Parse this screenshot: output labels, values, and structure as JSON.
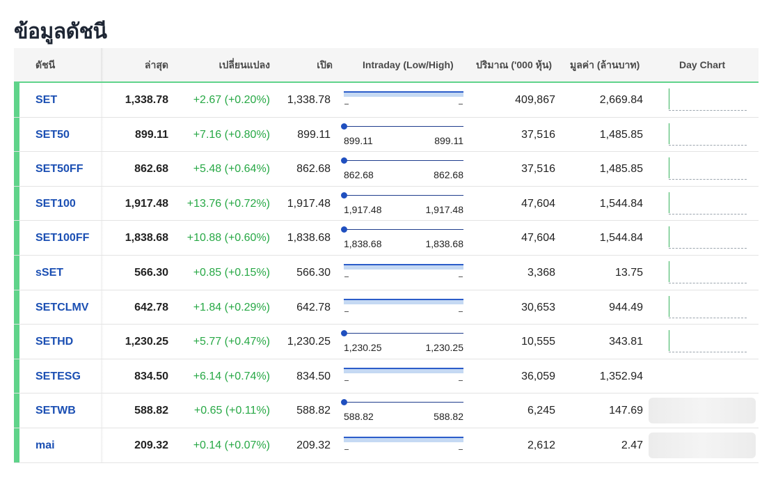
{
  "page_title": "ข้อมูลดัชนี",
  "columns": {
    "index": "ดัชนี",
    "last": "ล่าสุด",
    "change": "เปลี่ยนแปลง",
    "open": "เปิด",
    "intraday": "Intraday (Low/High)",
    "volume": "ปริมาณ ('000 หุ้น)",
    "value": "มูลค่า (ล้านบาท)",
    "day_chart": "Day Chart"
  },
  "colors": {
    "accent": "#5fd38a",
    "link": "#1b4fb3",
    "up": "#27a845",
    "bar": "#2b5cc9"
  },
  "rows": [
    {
      "name": "SET",
      "last": "1,338.78",
      "change": "+2.67 (+0.20%)",
      "open": "1,338.78",
      "low": "",
      "high": "",
      "volume": "409,867",
      "value": "2,669.84",
      "intraday_style": "band",
      "day_chart": "sparkline"
    },
    {
      "name": "SET50",
      "last": "899.11",
      "change": "+7.16 (+0.80%)",
      "open": "899.11",
      "low": "899.11",
      "high": "899.11",
      "volume": "37,516",
      "value": "1,485.85",
      "intraday_style": "point",
      "day_chart": "sparkline"
    },
    {
      "name": "SET50FF",
      "last": "862.68",
      "change": "+5.48 (+0.64%)",
      "open": "862.68",
      "low": "862.68",
      "high": "862.68",
      "volume": "37,516",
      "value": "1,485.85",
      "intraday_style": "point",
      "day_chart": "sparkline"
    },
    {
      "name": "SET100",
      "last": "1,917.48",
      "change": "+13.76 (+0.72%)",
      "open": "1,917.48",
      "low": "1,917.48",
      "high": "1,917.48",
      "volume": "47,604",
      "value": "1,544.84",
      "intraday_style": "point",
      "day_chart": "sparkline"
    },
    {
      "name": "SET100FF",
      "last": "1,838.68",
      "change": "+10.88 (+0.60%)",
      "open": "1,838.68",
      "low": "1,838.68",
      "high": "1,838.68",
      "volume": "47,604",
      "value": "1,544.84",
      "intraday_style": "point",
      "day_chart": "sparkline"
    },
    {
      "name": "sSET",
      "last": "566.30",
      "change": "+0.85 (+0.15%)",
      "open": "566.30",
      "low": "",
      "high": "",
      "volume": "3,368",
      "value": "13.75",
      "intraday_style": "band",
      "day_chart": "sparkline"
    },
    {
      "name": "SETCLMV",
      "last": "642.78",
      "change": "+1.84 (+0.29%)",
      "open": "642.78",
      "low": "",
      "high": "",
      "volume": "30,653",
      "value": "944.49",
      "intraday_style": "band",
      "day_chart": "sparkline"
    },
    {
      "name": "SETHD",
      "last": "1,230.25",
      "change": "+5.77 (+0.47%)",
      "open": "1,230.25",
      "low": "1,230.25",
      "high": "1,230.25",
      "volume": "10,555",
      "value": "343.81",
      "intraday_style": "point",
      "day_chart": "sparkline"
    },
    {
      "name": "SETESG",
      "last": "834.50",
      "change": "+6.14 (+0.74%)",
      "open": "834.50",
      "low": "",
      "high": "",
      "volume": "36,059",
      "value": "1,352.94",
      "intraday_style": "band",
      "day_chart": "none"
    },
    {
      "name": "SETWB",
      "last": "588.82",
      "change": "+0.65 (+0.11%)",
      "open": "588.82",
      "low": "588.82",
      "high": "588.82",
      "volume": "6,245",
      "value": "147.69",
      "intraday_style": "point",
      "day_chart": "loading"
    },
    {
      "name": "mai",
      "last": "209.32",
      "change": "+0.14 (+0.07%)",
      "open": "209.32",
      "low": "",
      "high": "",
      "volume": "2,612",
      "value": "2.47",
      "intraday_style": "band",
      "day_chart": "loading"
    }
  ]
}
